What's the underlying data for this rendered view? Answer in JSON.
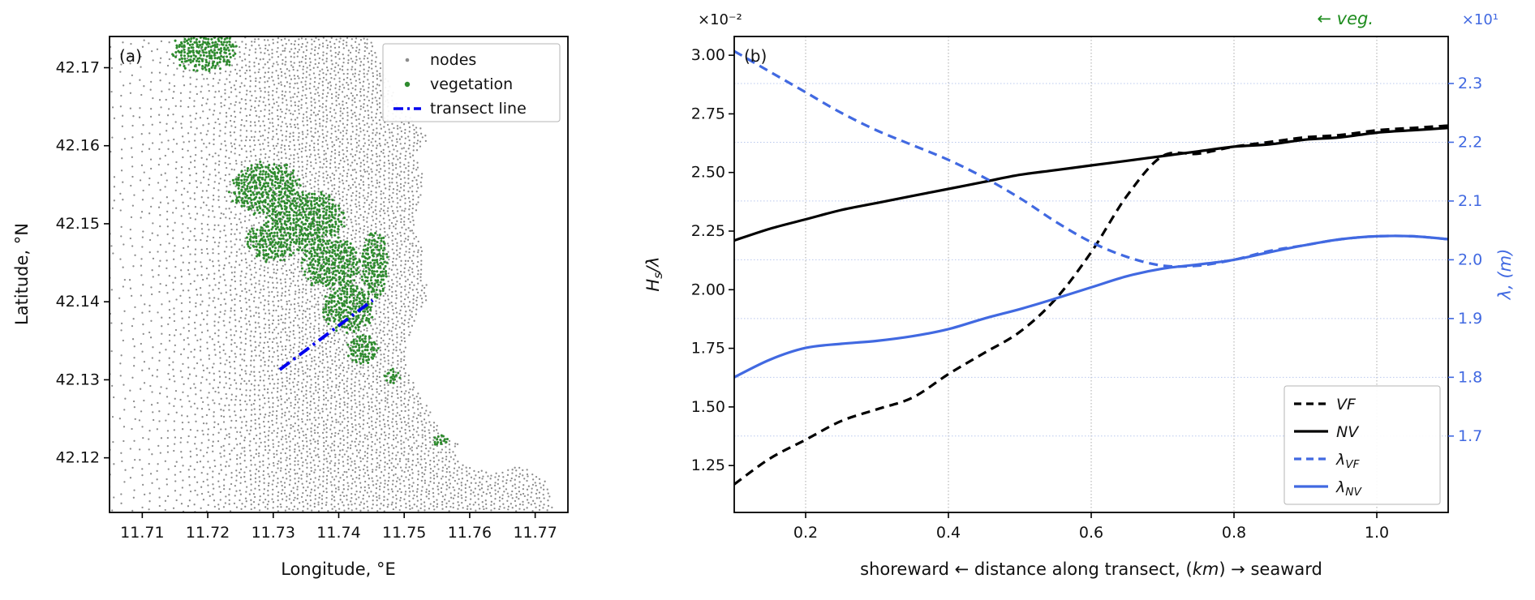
{
  "chart_data": [
    {
      "id": "map",
      "type": "scatter",
      "panel_label": "(a)",
      "xlabel": "Longitude, °E",
      "ylabel": "Latitude, °N",
      "xlim": [
        11.705,
        11.775
      ],
      "ylim": [
        42.113,
        42.174
      ],
      "xtick_values": [
        11.71,
        11.72,
        11.73,
        11.74,
        11.75,
        11.76,
        11.77
      ],
      "xtick_labels": [
        "11.71",
        "11.72",
        "11.73",
        "11.74",
        "11.75",
        "11.76",
        "11.77"
      ],
      "ytick_values": [
        42.12,
        42.13,
        42.14,
        42.15,
        42.16,
        42.17
      ],
      "ytick_labels": [
        "42.12",
        "42.13",
        "42.14",
        "42.15",
        "42.16",
        "42.17"
      ],
      "legend": [
        {
          "label": "nodes",
          "marker": "dot",
          "color": "#8c8c8c",
          "size": 2.3
        },
        {
          "label": "vegetation",
          "marker": "dot",
          "color": "#2e8b2e",
          "size": 3.2
        },
        {
          "label": "transect line",
          "marker": "dashdot",
          "color": "#0000ee"
        }
      ],
      "colors": {
        "nodes": "#8c8c8c",
        "vegetation": "#2e8b2e",
        "transect": "#0000ee"
      },
      "transect": {
        "lon1": 11.731,
        "lat1": 42.1313,
        "lon2": 11.7452,
        "lat2": 42.1402
      },
      "coastline": [
        [
          42.174,
          11.745
        ],
        [
          42.171,
          11.7462
        ],
        [
          42.168,
          11.748
        ],
        [
          42.165,
          11.7492
        ],
        [
          42.163,
          11.752
        ],
        [
          42.161,
          11.754
        ],
        [
          42.159,
          11.7518
        ],
        [
          42.156,
          11.753
        ],
        [
          42.153,
          11.7525
        ],
        [
          42.15,
          11.7515
        ],
        [
          42.147,
          11.753
        ],
        [
          42.144,
          11.7527
        ],
        [
          42.141,
          11.754
        ],
        [
          42.138,
          11.752
        ],
        [
          42.135,
          11.7505
        ],
        [
          42.132,
          11.7503
        ],
        [
          42.129,
          11.752
        ],
        [
          42.126,
          11.754
        ],
        [
          42.123,
          11.756
        ],
        [
          42.121,
          11.76
        ],
        [
          42.119,
          11.768
        ],
        [
          42.117,
          11.772
        ],
        [
          42.113,
          11.773
        ]
      ],
      "lagoon": {
        "lon": 11.7635,
        "lat": 42.1205,
        "rx": 0.0055,
        "ry": 0.0022
      },
      "vegetation_blobs": [
        [
          11.729,
          42.1545,
          0.0058,
          0.0036
        ],
        [
          11.735,
          42.1505,
          0.0062,
          0.004
        ],
        [
          11.739,
          42.145,
          0.0048,
          0.0038
        ],
        [
          11.7415,
          42.1392,
          0.004,
          0.0034
        ],
        [
          11.7298,
          42.1478,
          0.004,
          0.0028
        ],
        [
          11.7438,
          42.1338,
          0.0026,
          0.002
        ],
        [
          11.7455,
          42.1448,
          0.0022,
          0.0045
        ],
        [
          11.7195,
          42.1722,
          0.0052,
          0.0028
        ],
        [
          11.7556,
          42.1222,
          0.0013,
          0.0009
        ],
        [
          11.7482,
          42.1305,
          0.0012,
          0.001
        ]
      ]
    },
    {
      "id": "transect_profiles",
      "type": "line",
      "panel_label": "(b)",
      "left_scale_note": "×10⁻²",
      "right_scale_note": "×10¹",
      "veg_annotation": "← veg.",
      "xlabel_parts": [
        {
          "t": "shoreward ←  distance along transect, ("
        },
        {
          "t": "km",
          "i": true
        },
        {
          "t": ")  → seaward"
        }
      ],
      "ylabel_left_parts": [
        {
          "t": "H"
        },
        {
          "t": "s",
          "sub": true
        },
        {
          "t": "/λ"
        }
      ],
      "ylabel_right_parts": [
        {
          "t": "λ, (m)"
        }
      ],
      "xlim": [
        0.1,
        1.1
      ],
      "xtick_values": [
        0.2,
        0.4,
        0.6,
        0.8,
        1.0
      ],
      "xtick_labels": [
        "0.2",
        "0.4",
        "0.6",
        "0.8",
        "1.0"
      ],
      "ylim_left": [
        1.05,
        3.08
      ],
      "ytick_left_values": [
        1.25,
        1.5,
        1.75,
        2.0,
        2.25,
        2.5,
        2.75,
        3.0
      ],
      "ytick_left_labels": [
        "1.25",
        "1.50",
        "1.75",
        "2.00",
        "2.25",
        "2.50",
        "2.75",
        "3.00"
      ],
      "ylim_right": [
        1.57,
        2.38
      ],
      "ytick_right_values": [
        1.7,
        1.8,
        1.9,
        2.0,
        2.1,
        2.2,
        2.3
      ],
      "ytick_right_labels": [
        "1.7",
        "1.8",
        "1.9",
        "2.0",
        "2.1",
        "2.2",
        "2.3"
      ],
      "colors": {
        "black": "#000000",
        "blue": "#4169e1",
        "grid_v": "#aaaaaa",
        "grid_h": "#b9c8ee"
      },
      "x": [
        0.1,
        0.15,
        0.2,
        0.25,
        0.3,
        0.35,
        0.4,
        0.45,
        0.5,
        0.55,
        0.6,
        0.65,
        0.7,
        0.75,
        0.8,
        0.85,
        0.9,
        0.95,
        1.0,
        1.05,
        1.1
      ],
      "series": [
        {
          "name": "VF",
          "axis": "left",
          "color": "#000000",
          "dash": "11 7",
          "y": [
            1.17,
            1.28,
            1.36,
            1.44,
            1.49,
            1.54,
            1.64,
            1.73,
            1.82,
            1.96,
            2.16,
            2.4,
            2.57,
            2.58,
            2.61,
            2.63,
            2.65,
            2.66,
            2.68,
            2.69,
            2.7
          ]
        },
        {
          "name": "NV",
          "axis": "left",
          "color": "#000000",
          "dash": "",
          "y": [
            2.21,
            2.26,
            2.3,
            2.34,
            2.37,
            2.4,
            2.43,
            2.46,
            2.49,
            2.51,
            2.53,
            2.55,
            2.57,
            2.59,
            2.61,
            2.62,
            2.64,
            2.65,
            2.67,
            2.68,
            2.69
          ]
        },
        {
          "name": "lambda_VF",
          "axis": "right",
          "color": "#4169e1",
          "dash": "11 7",
          "y": [
            2.355,
            2.32,
            2.285,
            2.25,
            2.22,
            2.195,
            2.17,
            2.14,
            2.105,
            2.065,
            2.03,
            2.005,
            1.99,
            1.99,
            2.0,
            2.015,
            2.025,
            2.035,
            2.04,
            2.04,
            2.035
          ]
        },
        {
          "name": "lambda_NV",
          "axis": "right",
          "color": "#4169e1",
          "dash": "",
          "y": [
            1.8,
            1.83,
            1.85,
            1.857,
            1.862,
            1.87,
            1.882,
            1.9,
            1.916,
            1.934,
            1.953,
            1.972,
            1.985,
            1.992,
            2.0,
            2.013,
            2.025,
            2.035,
            2.04,
            2.04,
            2.035
          ]
        }
      ],
      "legend": [
        {
          "parts": [
            {
              "t": "VF"
            }
          ],
          "color": "#000000",
          "dash": "9 6"
        },
        {
          "parts": [
            {
              "t": "NV"
            }
          ],
          "color": "#000000",
          "dash": ""
        },
        {
          "parts": [
            {
              "t": "λ"
            },
            {
              "t": "VF",
              "sub": true
            }
          ],
          "color": "#4169e1",
          "dash": "9 6"
        },
        {
          "parts": [
            {
              "t": "λ"
            },
            {
              "t": "NV",
              "sub": true
            }
          ],
          "color": "#4169e1",
          "dash": ""
        }
      ]
    }
  ]
}
